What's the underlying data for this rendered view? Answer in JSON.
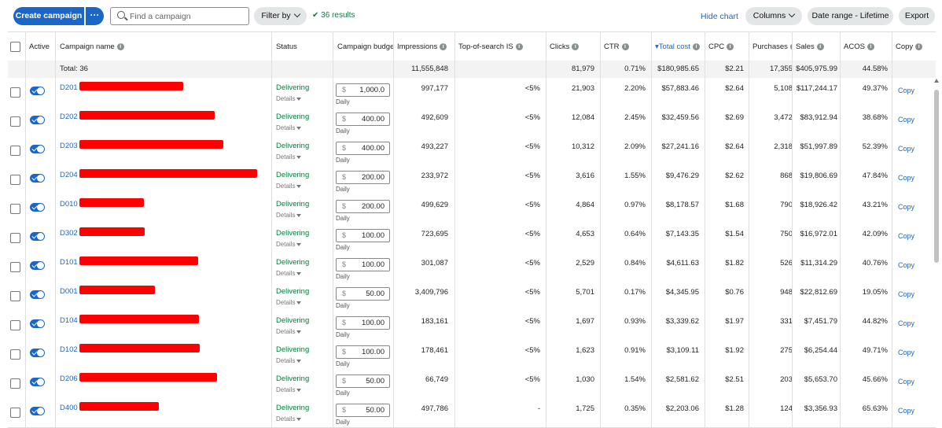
{
  "toolbar": {
    "create_label": "Create campaign",
    "more_label": "···",
    "search_placeholder": "Find a campaign",
    "filter_label": "Filter by",
    "results_text": "36 results",
    "hide_chart_label": "Hide chart",
    "columns_label": "Columns",
    "date_range_label": "Date range - Lifetime",
    "export_label": "Export"
  },
  "columns": [
    {
      "key": "active",
      "label": "Active",
      "info": false
    },
    {
      "key": "name",
      "label": "Campaign name",
      "info": true
    },
    {
      "key": "status",
      "label": "Status",
      "info": false
    },
    {
      "key": "budget",
      "label": "Campaign budge",
      "info": false
    },
    {
      "key": "impressions",
      "label": "Impressions",
      "info": true
    },
    {
      "key": "tos",
      "label": "Top-of-search IS",
      "info": true
    },
    {
      "key": "clicks",
      "label": "Clicks",
      "info": true
    },
    {
      "key": "ctr",
      "label": "CTR",
      "info": true
    },
    {
      "key": "cost",
      "label": "Total cost",
      "info": true,
      "sorted": true
    },
    {
      "key": "cpc",
      "label": "CPC",
      "info": true
    },
    {
      "key": "purchases",
      "label": "Purchases",
      "info": true
    },
    {
      "key": "sales",
      "label": "Sales",
      "info": true
    },
    {
      "key": "acos",
      "label": "ACOS",
      "info": true
    },
    {
      "key": "copy",
      "label": "Copy",
      "info": true
    }
  ],
  "totals": {
    "label": "Total: 36",
    "impressions": "11,555,848",
    "clicks": "81,979",
    "ctr": "0.71%",
    "cost": "$180,985.65",
    "cpc": "$2.21",
    "purchases": "17,355",
    "sales": "$405,975.99",
    "acos": "44.58%"
  },
  "row_labels": {
    "details": "Details",
    "currency": "$",
    "daily": "Daily",
    "copy": "Copy"
  },
  "rows": [
    {
      "name": "D201",
      "status": "Delivering",
      "budget": "1,000.0",
      "impressions": "997,177",
      "tos": "<5%",
      "clicks": "21,903",
      "ctr": "2.20%",
      "cost": "$57,883.46",
      "cpc": "$2.64",
      "purchases": "5,108",
      "sales": "$117,244.17",
      "acos": "49.37%"
    },
    {
      "name": "D202",
      "status": "Delivering",
      "budget": "400.00",
      "impressions": "492,609",
      "tos": "<5%",
      "clicks": "12,084",
      "ctr": "2.45%",
      "cost": "$32,459.56",
      "cpc": "$2.69",
      "purchases": "3,472",
      "sales": "$83,912.94",
      "acos": "38.68%"
    },
    {
      "name": "D203",
      "status": "Delivering",
      "budget": "400.00",
      "impressions": "493,227",
      "tos": "<5%",
      "clicks": "10,312",
      "ctr": "2.09%",
      "cost": "$27,241.16",
      "cpc": "$2.64",
      "purchases": "2,318",
      "sales": "$51,997.89",
      "acos": "52.39%"
    },
    {
      "name": "D204",
      "status": "Delivering",
      "budget": "200.00",
      "impressions": "233,972",
      "tos": "<5%",
      "clicks": "3,616",
      "ctr": "1.55%",
      "cost": "$9,476.29",
      "cpc": "$2.62",
      "purchases": "868",
      "sales": "$19,806.69",
      "acos": "47.84%"
    },
    {
      "name": "D010",
      "status": "Delivering",
      "budget": "200.00",
      "impressions": "499,629",
      "tos": "<5%",
      "clicks": "4,864",
      "ctr": "0.97%",
      "cost": "$8,178.57",
      "cpc": "$1.68",
      "purchases": "790",
      "sales": "$18,926.42",
      "acos": "43.21%"
    },
    {
      "name": "D302",
      "status": "Delivering",
      "budget": "100.00",
      "impressions": "723,695",
      "tos": "<5%",
      "clicks": "4,653",
      "ctr": "0.64%",
      "cost": "$7,143.35",
      "cpc": "$1.54",
      "purchases": "750",
      "sales": "$16,972.01",
      "acos": "42.09%"
    },
    {
      "name": "D101",
      "status": "Delivering",
      "budget": "100.00",
      "impressions": "301,087",
      "tos": "<5%",
      "clicks": "2,529",
      "ctr": "0.84%",
      "cost": "$4,611.63",
      "cpc": "$1.82",
      "purchases": "526",
      "sales": "$11,314.29",
      "acos": "40.76%"
    },
    {
      "name": "D001",
      "status": "Delivering",
      "budget": "50.00",
      "impressions": "3,409,796",
      "tos": "<5%",
      "clicks": "5,701",
      "ctr": "0.17%",
      "cost": "$4,345.95",
      "cpc": "$0.76",
      "purchases": "948",
      "sales": "$22,812.69",
      "acos": "19.05%"
    },
    {
      "name": "D104",
      "status": "Delivering",
      "budget": "100.00",
      "impressions": "183,161",
      "tos": "<5%",
      "clicks": "1,697",
      "ctr": "0.93%",
      "cost": "$3,339.62",
      "cpc": "$1.97",
      "purchases": "331",
      "sales": "$7,451.79",
      "acos": "44.82%"
    },
    {
      "name": "D102",
      "status": "Delivering",
      "budget": "100.00",
      "impressions": "178,461",
      "tos": "<5%",
      "clicks": "1,623",
      "ctr": "0.91%",
      "cost": "$3,109.11",
      "cpc": "$1.92",
      "purchases": "275",
      "sales": "$6,254.44",
      "acos": "49.71%"
    },
    {
      "name": "D206",
      "status": "Delivering",
      "budget": "50.00",
      "impressions": "66,749",
      "tos": "<5%",
      "clicks": "1,030",
      "ctr": "1.54%",
      "cost": "$2,581.62",
      "cpc": "$2.51",
      "purchases": "203",
      "sales": "$5,653.70",
      "acos": "45.66%"
    },
    {
      "name": "D400",
      "status": "Delivering",
      "budget": "50.00",
      "impressions": "497,786",
      "tos": "-",
      "clicks": "1,725",
      "ctr": "0.35%",
      "cost": "$2,203.06",
      "cpc": "$1.28",
      "purchases": "124",
      "sales": "$3,356.93",
      "acos": "65.63%"
    }
  ],
  "colors": {
    "accent": "#1a67c9",
    "delivering": "#067d3c",
    "redaction": "#ff0000"
  }
}
